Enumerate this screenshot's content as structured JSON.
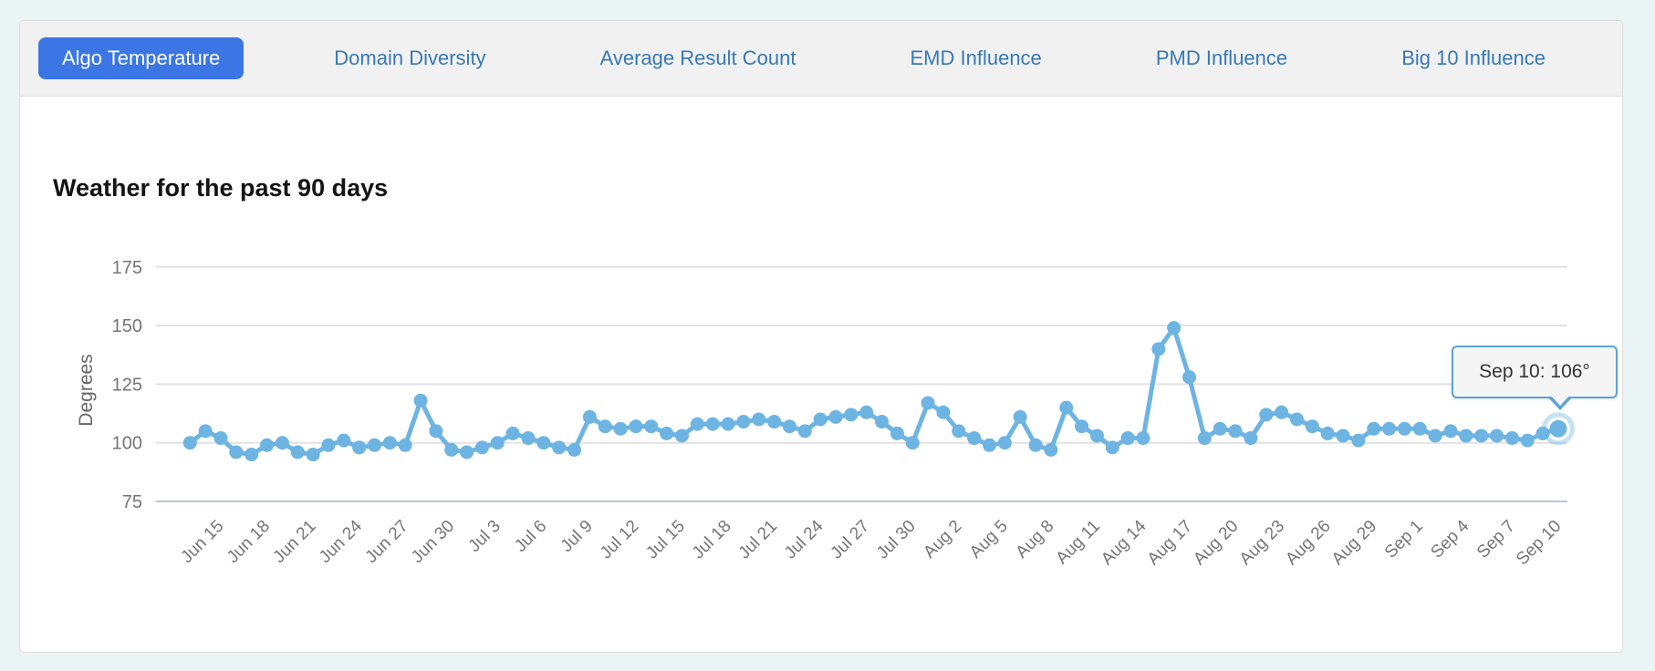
{
  "colors": {
    "page_background": "#eaf4f4",
    "panel_background": "#ffffff",
    "tabbar_background": "#f1f1f1",
    "active_tab_background": "#3b76e4",
    "active_tab_text": "#ffffff",
    "inactive_tab_text": "#3779b5",
    "line": "#6db4e3",
    "gridline": "#e2e2e2",
    "axis_line": "#b9c5d8",
    "tick_text": "#757575",
    "tooltip_border": "#5ca3d6",
    "tooltip_background": "#f5f5f5"
  },
  "tabs": {
    "items": [
      {
        "label": "Algo Temperature",
        "active": true
      },
      {
        "label": "Domain Diversity",
        "active": false
      },
      {
        "label": "Average Result Count",
        "active": false
      },
      {
        "label": "EMD Influence",
        "active": false
      },
      {
        "label": "PMD Influence",
        "active": false
      },
      {
        "label": "Big 10 Influence",
        "active": false
      }
    ]
  },
  "tooltip": {
    "label": "Sep 10: 106°"
  },
  "chart_data": {
    "type": "line",
    "title": "Weather for the past 90 days",
    "xlabel": "",
    "ylabel": "Degrees",
    "ylim": [
      75,
      185
    ],
    "yticks": [
      175,
      150,
      125,
      100,
      75
    ],
    "grid": "horizontal",
    "legend": "none",
    "marker": "circle",
    "xtick_labels": [
      "Jun 15",
      "Jun 18",
      "Jun 21",
      "Jun 24",
      "Jun 27",
      "Jun 30",
      "Jul 3",
      "Jul 6",
      "Jul 9",
      "Jul 12",
      "Jul 15",
      "Jul 18",
      "Jul 21",
      "Jul 24",
      "Jul 27",
      "Jul 30",
      "Aug 2",
      "Aug 5",
      "Aug 8",
      "Aug 11",
      "Aug 14",
      "Aug 17",
      "Aug 20",
      "Aug 23",
      "Aug 26",
      "Aug 29",
      "Sep 1",
      "Sep 4",
      "Sep 7",
      "Sep 10"
    ],
    "xtick_start_index": 2,
    "xtick_every": 3,
    "highlight_point": {
      "index": 89,
      "category": "Sep 10",
      "value": 106,
      "tooltip": "Sep 10: 106°"
    },
    "categories": [
      "Jun 13",
      "Jun 14",
      "Jun 15",
      "Jun 16",
      "Jun 17",
      "Jun 18",
      "Jun 19",
      "Jun 20",
      "Jun 21",
      "Jun 22",
      "Jun 23",
      "Jun 24",
      "Jun 25",
      "Jun 26",
      "Jun 27",
      "Jun 28",
      "Jun 29",
      "Jun 30",
      "Jul 1",
      "Jul 2",
      "Jul 3",
      "Jul 4",
      "Jul 5",
      "Jul 6",
      "Jul 7",
      "Jul 8",
      "Jul 9",
      "Jul 10",
      "Jul 11",
      "Jul 12",
      "Jul 13",
      "Jul 14",
      "Jul 15",
      "Jul 16",
      "Jul 17",
      "Jul 18",
      "Jul 19",
      "Jul 20",
      "Jul 21",
      "Jul 22",
      "Jul 23",
      "Jul 24",
      "Jul 25",
      "Jul 26",
      "Jul 27",
      "Jul 28",
      "Jul 29",
      "Jul 30",
      "Jul 31",
      "Aug 1",
      "Aug 2",
      "Aug 3",
      "Aug 4",
      "Aug 5",
      "Aug 6",
      "Aug 7",
      "Aug 8",
      "Aug 9",
      "Aug 10",
      "Aug 11",
      "Aug 12",
      "Aug 13",
      "Aug 14",
      "Aug 15",
      "Aug 16",
      "Aug 17",
      "Aug 18",
      "Aug 19",
      "Aug 20",
      "Aug 21",
      "Aug 22",
      "Aug 23",
      "Aug 24",
      "Aug 25",
      "Aug 26",
      "Aug 27",
      "Aug 28",
      "Aug 29",
      "Aug 30",
      "Aug 31",
      "Sep 1",
      "Sep 2",
      "Sep 3",
      "Sep 4",
      "Sep 5",
      "Sep 6",
      "Sep 7",
      "Sep 8",
      "Sep 9",
      "Sep 10"
    ],
    "values": [
      100,
      105,
      102,
      96,
      95,
      99,
      100,
      96,
      95,
      99,
      101,
      98,
      99,
      100,
      99,
      118,
      105,
      97,
      96,
      98,
      100,
      104,
      102,
      100,
      98,
      97,
      111,
      107,
      106,
      107,
      107,
      104,
      103,
      108,
      108,
      108,
      109,
      110,
      109,
      107,
      105,
      110,
      111,
      112,
      113,
      109,
      104,
      100,
      117,
      113,
      105,
      102,
      99,
      100,
      111,
      99,
      97,
      115,
      107,
      103,
      98,
      102,
      102,
      140,
      149,
      128,
      102,
      106,
      105,
      102,
      112,
      113,
      110,
      107,
      104,
      103,
      101,
      106,
      106,
      106,
      106,
      103,
      105,
      103,
      103,
      103,
      102,
      101,
      104,
      106
    ]
  }
}
